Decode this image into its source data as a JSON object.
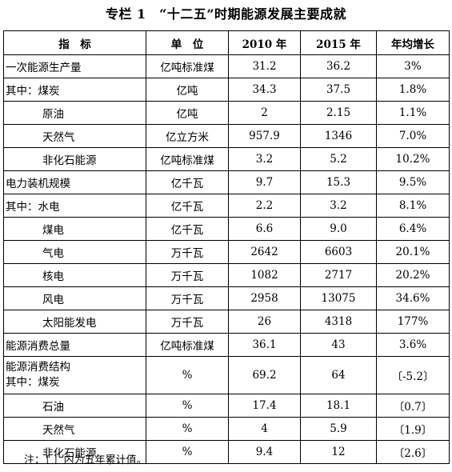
{
  "title": "专栏 1　“十二五”时期能源发展主要成就",
  "headers": [
    "指　标",
    "单　位",
    "2010 年",
    "2015 年",
    "年均增长"
  ],
  "rows": [
    {
      "label": "一次能源生产量",
      "unit": "亿吨标准煤",
      "y2010": "31.2",
      "y2015": "36.2",
      "growth": "3%"
    },
    {
      "label": "其中：煤炭",
      "unit": "亿吨",
      "y2010": "34.3",
      "y2015": "37.5",
      "growth": "1.8%"
    },
    {
      "label": "原油",
      "unit": "亿吨",
      "y2010": "2",
      "y2015": "2.15",
      "growth": "1.1%"
    },
    {
      "label": "天然气",
      "unit": "亿立方米",
      "y2010": "957.9",
      "y2015": "1346",
      "growth": "7.0%"
    },
    {
      "label": "非化石能源",
      "unit": "亿吨标准煤",
      "y2010": "3.2",
      "y2015": "5.2",
      "growth": "10.2%"
    },
    {
      "label": "电力装机规模",
      "unit": "亿千瓦",
      "y2010": "9.7",
      "y2015": "15.3",
      "growth": "9.5%"
    },
    {
      "label": "其中：水电",
      "unit": "亿千瓦",
      "y2010": "2.2",
      "y2015": "3.2",
      "growth": "8.1%"
    },
    {
      "label": "煤电",
      "unit": "亿千瓦",
      "y2010": "6.6",
      "y2015": "9.0",
      "growth": "6.4%"
    },
    {
      "label": "气电",
      "unit": "万千瓦",
      "y2010": "2642",
      "y2015": "6603",
      "growth": "20.1%"
    },
    {
      "label": "核电",
      "unit": "万千瓦",
      "y2010": "1082",
      "y2015": "2717",
      "growth": "20.2%"
    },
    {
      "label": "风电",
      "unit": "万千瓦",
      "y2010": "2958",
      "y2015": "13075",
      "growth": "34.6%"
    },
    {
      "label": "太阳能发电",
      "unit": "万千瓦",
      "y2010": "26",
      "y2015": "4318",
      "growth": "177%"
    },
    {
      "label": "能源消费总量",
      "unit": "亿吨标准煤",
      "y2010": "36.1",
      "y2015": "43",
      "growth": "3.6%"
    },
    {
      "label": "能源消费结构",
      "label2": "其中：煤炭",
      "unit": "%",
      "y2010": "69.2",
      "y2015": "64",
      "growth": "〔-5.2〕"
    },
    {
      "label": "石油",
      "unit": "%",
      "y2010": "17.4",
      "y2015": "18.1",
      "growth": "〔0.7〕"
    },
    {
      "label": "天然气",
      "unit": "%",
      "y2010": "4",
      "y2015": "5.9",
      "growth": "〔1.9〕"
    },
    {
      "label": "非化石能源",
      "unit": "%",
      "y2010": "9.4",
      "y2015": "12",
      "growth": "〔2.6〕"
    }
  ],
  "note": "注：〔 〕内为五年累计值。"
}
